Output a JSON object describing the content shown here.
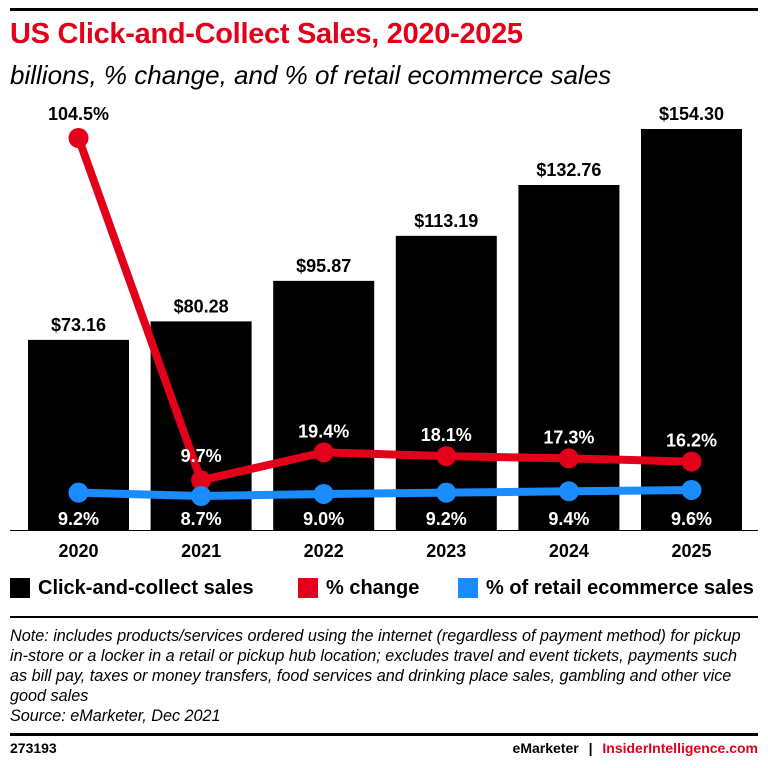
{
  "header": {
    "title": "US Click-and-Collect Sales, 2020-2025",
    "subtitle": "billions, % change, and % of retail ecommerce sales"
  },
  "colors": {
    "bar": "#000000",
    "change_line": "#e3001b",
    "share_line": "#1a8cff",
    "title": "#e3001b"
  },
  "chart_data": {
    "type": "bar",
    "categories": [
      "2020",
      "2021",
      "2022",
      "2023",
      "2024",
      "2025"
    ],
    "series": [
      {
        "name": "Click-and-collect sales",
        "type": "bar",
        "values": [
          73.16,
          80.28,
          95.87,
          113.19,
          132.76,
          154.3
        ],
        "labels": [
          "$73.16",
          "$80.28",
          "$95.87",
          "$113.19",
          "$132.76",
          "$154.30"
        ]
      },
      {
        "name": "% change",
        "type": "line",
        "values": [
          104.5,
          9.7,
          19.4,
          18.1,
          17.3,
          16.2
        ],
        "labels": [
          "104.5%",
          "9.7%",
          "19.4%",
          "18.1%",
          "17.3%",
          "16.2%"
        ]
      },
      {
        "name": "% of retail ecommerce sales",
        "type": "line",
        "values": [
          9.2,
          8.7,
          9.0,
          9.2,
          9.4,
          9.6
        ],
        "labels": [
          "9.2%",
          "8.7%",
          "9.0%",
          "9.2%",
          "9.4%",
          "9.6%"
        ]
      }
    ],
    "legend_position": "bottom",
    "grid": false
  },
  "legend": [
    {
      "label": "Click-and-collect sales",
      "color": "#000000"
    },
    {
      "label": "% change",
      "color": "#e3001b"
    },
    {
      "label": "% of retail ecommerce sales",
      "color": "#1a8cff"
    }
  ],
  "note": "Note: includes products/services ordered using the internet (regardless of payment method) for pickup in-store or a locker in a retail or pickup hub location; excludes travel and event tickets, payments such as bill pay, taxes or money transfers, food services and drinking place sales, gambling and other vice good sales",
  "source": "Source: eMarketer, Dec 2021",
  "footer": {
    "chart_id": "273193",
    "brand_a": "eMarketer",
    "separator": "|",
    "brand_b": "InsiderIntelligence.com"
  }
}
